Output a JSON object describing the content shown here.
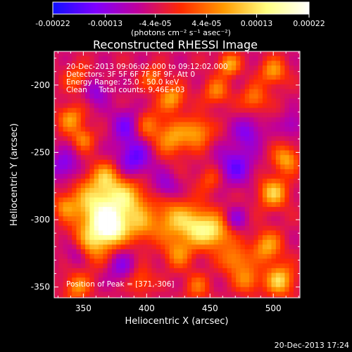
{
  "colorbar": {
    "tick_labels": [
      "-0.00022",
      "-0.00013",
      "-4.4e-05",
      "4.4e-05",
      "0.00013",
      "0.00022"
    ],
    "tick_values": [
      -0.00022,
      -0.00013,
      -4.4e-05,
      4.4e-05,
      0.00013,
      0.00022
    ],
    "range": [
      -0.00022,
      0.00022
    ],
    "unit_label": "(photons cm⁻² s⁻¹ asec⁻²)",
    "colors": [
      "#1010ff",
      "#7f00ff",
      "#c0009a",
      "#ff2a00",
      "#ff9a00",
      "#ffff80",
      "#ffffff"
    ]
  },
  "chart_data": {
    "type": "heatmap",
    "title": "Reconstructed RHESSI Image",
    "xlabel": "Heliocentric X (arcsec)",
    "ylabel": "Heliocentric Y (arcsec)",
    "xlim": [
      327,
      521
    ],
    "ylim": [
      -358,
      -175
    ],
    "xticks": [
      350,
      400,
      450,
      500
    ],
    "yticks": [
      -350,
      -300,
      -250,
      -200
    ],
    "xtick_labels": [
      "350",
      "400",
      "450",
      "500"
    ],
    "ytick_labels": [
      "-350",
      "-300",
      "-250",
      "-200"
    ],
    "annotations": [
      "20-Dec-2013 09:06:02.000 to 09:12:02.000",
      "Detectors: 3F 5F 6F 7F 8F 9F, Att 0",
      "Energy Range: 25.0 - 50.0 keV",
      "Clean     Total counts: 9.46E+03"
    ],
    "peak_label": "Position of Peak = [371,-306]",
    "peak": [
      371,
      -306
    ],
    "blobs": [
      {
        "x": 371,
        "y": -306,
        "w": 0.00022,
        "s": 9
      },
      {
        "x": 360,
        "y": -290,
        "w": 0.00018,
        "s": 14
      },
      {
        "x": 385,
        "y": -285,
        "w": 0.00014,
        "s": 11
      },
      {
        "x": 355,
        "y": -320,
        "w": 0.00012,
        "s": 10
      },
      {
        "x": 395,
        "y": -305,
        "w": 0.0001,
        "s": 9
      },
      {
        "x": 368,
        "y": -268,
        "w": 0.0001,
        "s": 8
      },
      {
        "x": 420,
        "y": -300,
        "w": 0.00012,
        "s": 11
      },
      {
        "x": 440,
        "y": -305,
        "w": 0.00015,
        "s": 10
      },
      {
        "x": 455,
        "y": -310,
        "w": 0.00013,
        "s": 9
      },
      {
        "x": 425,
        "y": -325,
        "w": 0.0001,
        "s": 8
      },
      {
        "x": 470,
        "y": -330,
        "w": 0.00011,
        "s": 8
      },
      {
        "x": 500,
        "y": -280,
        "w": 0.00015,
        "s": 8
      },
      {
        "x": 510,
        "y": -255,
        "w": 0.00013,
        "s": 7
      },
      {
        "x": 495,
        "y": -320,
        "w": 0.00013,
        "s": 8
      },
      {
        "x": 505,
        "y": -345,
        "w": 0.00016,
        "s": 8
      },
      {
        "x": 480,
        "y": -345,
        "w": 0.0001,
        "s": 7
      },
      {
        "x": 340,
        "y": -225,
        "w": 0.00012,
        "s": 7
      },
      {
        "x": 350,
        "y": -240,
        "w": 0.0001,
        "s": 6
      },
      {
        "x": 420,
        "y": -240,
        "w": 0.00012,
        "s": 9
      },
      {
        "x": 440,
        "y": -235,
        "w": 0.00012,
        "s": 8
      },
      {
        "x": 400,
        "y": -230,
        "w": 0.0001,
        "s": 8
      },
      {
        "x": 420,
        "y": -210,
        "w": 0.00013,
        "s": 7
      },
      {
        "x": 455,
        "y": -205,
        "w": 0.0001,
        "s": 7
      },
      {
        "x": 485,
        "y": -210,
        "w": 0.0001,
        "s": 7
      },
      {
        "x": 500,
        "y": -190,
        "w": 0.00012,
        "s": 7
      },
      {
        "x": 465,
        "y": -185,
        "w": 0.00013,
        "s": 6
      },
      {
        "x": 405,
        "y": -195,
        "w": 9e-05,
        "s": 6
      },
      {
        "x": 345,
        "y": -195,
        "w": 8e-05,
        "s": 7
      },
      {
        "x": 345,
        "y": -350,
        "w": 0.00011,
        "s": 7
      },
      {
        "x": 395,
        "y": -345,
        "w": 8e-05,
        "s": 7
      },
      {
        "x": 440,
        "y": -350,
        "w": 8e-05,
        "s": 7
      },
      {
        "x": 335,
        "y": -290,
        "w": 8e-05,
        "s": 6
      },
      {
        "x": 450,
        "y": -270,
        "w": 7e-05,
        "s": 7
      },
      {
        "x": 335,
        "y": -260,
        "w": -0.0001,
        "s": 8
      },
      {
        "x": 390,
        "y": -255,
        "w": -0.00012,
        "s": 10
      },
      {
        "x": 385,
        "y": -230,
        "w": -0.0001,
        "s": 9
      },
      {
        "x": 470,
        "y": -260,
        "w": -0.00011,
        "s": 10
      },
      {
        "x": 480,
        "y": -235,
        "w": -9e-05,
        "s": 8
      },
      {
        "x": 345,
        "y": -325,
        "w": -9e-05,
        "s": 7
      },
      {
        "x": 380,
        "y": -335,
        "w": -8e-05,
        "s": 8
      },
      {
        "x": 415,
        "y": -275,
        "w": -8e-05,
        "s": 7
      },
      {
        "x": 360,
        "y": -205,
        "w": -8e-05,
        "s": 7
      },
      {
        "x": 515,
        "y": -230,
        "w": -7e-05,
        "s": 6
      },
      {
        "x": 470,
        "y": -300,
        "w": -8e-05,
        "s": 6
      }
    ]
  },
  "footer": {
    "timestamp": "20-Dec-2013 17:24"
  }
}
